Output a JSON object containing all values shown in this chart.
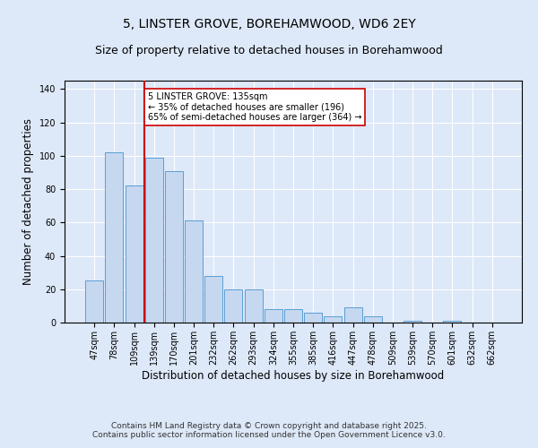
{
  "title": "5, LINSTER GROVE, BOREHAMWOOD, WD6 2EY",
  "subtitle": "Size of property relative to detached houses in Borehamwood",
  "xlabel": "Distribution of detached houses by size in Borehamwood",
  "ylabel": "Number of detached properties",
  "categories": [
    "47sqm",
    "78sqm",
    "109sqm",
    "139sqm",
    "170sqm",
    "201sqm",
    "232sqm",
    "262sqm",
    "293sqm",
    "324sqm",
    "355sqm",
    "385sqm",
    "416sqm",
    "447sqm",
    "478sqm",
    "509sqm",
    "539sqm",
    "570sqm",
    "601sqm",
    "632sqm",
    "662sqm"
  ],
  "values": [
    25,
    102,
    82,
    99,
    91,
    61,
    28,
    20,
    20,
    8,
    8,
    6,
    4,
    9,
    4,
    0,
    1,
    0,
    1,
    0,
    0
  ],
  "bar_color": "#c5d8f0",
  "bar_edge_color": "#5a9fd4",
  "vline_color": "#cc0000",
  "vline_pos": 2.5,
  "annotation_text": "5 LINSTER GROVE: 135sqm\n← 35% of detached houses are smaller (196)\n65% of semi-detached houses are larger (364) →",
  "annotation_box_color": "#ffffff",
  "annotation_box_edge": "#cc0000",
  "ylim": [
    0,
    145
  ],
  "yticks": [
    0,
    20,
    40,
    60,
    80,
    100,
    120,
    140
  ],
  "bg_color": "#dde8f8",
  "plot_bg_color": "#dde8f8",
  "footer": "Contains HM Land Registry data © Crown copyright and database right 2025.\nContains public sector information licensed under the Open Government Licence v3.0.",
  "title_fontsize": 10,
  "subtitle_fontsize": 9,
  "xlabel_fontsize": 8.5,
  "ylabel_fontsize": 8.5,
  "footer_fontsize": 6.5,
  "ann_fontsize": 7,
  "tick_fontsize": 7
}
